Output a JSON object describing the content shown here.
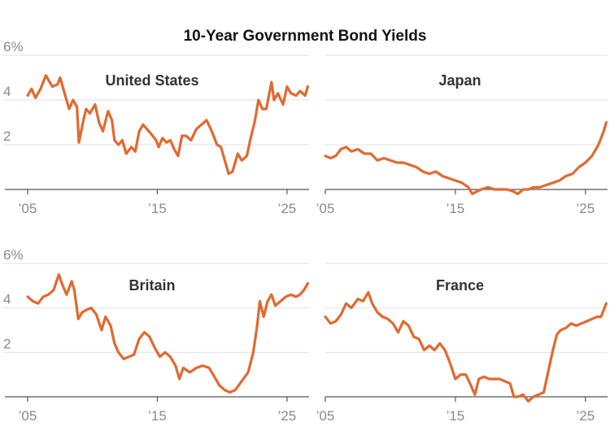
{
  "title": "10-Year Government Bond Yields",
  "colors": {
    "line": "#e06a31",
    "grid": "#e2e2e2",
    "axis": "#555555",
    "tick_text": "#8a8a8a"
  },
  "chart_data": [
    {
      "type": "line",
      "title": "United States",
      "xlim": [
        2005,
        2026.7
      ],
      "ylim": [
        0,
        6
      ],
      "yticks": [
        "6%",
        "4",
        "2"
      ],
      "xticks": [
        "’05",
        "’15",
        "’25"
      ],
      "x": [
        2005.0,
        2005.3,
        2005.6,
        2006.0,
        2006.4,
        2006.5,
        2006.9,
        2007.3,
        2007.5,
        2007.9,
        2008.2,
        2008.5,
        2008.8,
        2008.95,
        2009.3,
        2009.5,
        2009.8,
        2010.2,
        2010.5,
        2010.8,
        2011.2,
        2011.5,
        2011.7,
        2012.0,
        2012.3,
        2012.6,
        2013.0,
        2013.3,
        2013.6,
        2013.9,
        2014.2,
        2014.5,
        2014.9,
        2015.1,
        2015.4,
        2015.7,
        2016.0,
        2016.3,
        2016.6,
        2016.9,
        2017.2,
        2017.6,
        2018.0,
        2018.4,
        2018.8,
        2019.2,
        2019.6,
        2019.9,
        2020.2,
        2020.5,
        2020.8,
        2021.2,
        2021.5,
        2021.9,
        2022.2,
        2022.5,
        2022.8,
        2023.1,
        2023.4,
        2023.8,
        2024.0,
        2024.3,
        2024.7,
        2025.0,
        2025.3,
        2025.7,
        2026.0,
        2026.4,
        2026.6
      ],
      "values": [
        4.2,
        4.5,
        4.1,
        4.5,
        5.1,
        5.0,
        4.6,
        4.7,
        5.0,
        4.2,
        3.6,
        4.0,
        3.7,
        2.1,
        3.1,
        3.6,
        3.4,
        3.8,
        3.0,
        2.6,
        3.5,
        3.1,
        2.2,
        2.0,
        2.2,
        1.6,
        1.9,
        1.7,
        2.6,
        2.9,
        2.7,
        2.5,
        2.2,
        1.9,
        2.3,
        2.1,
        2.2,
        1.8,
        1.5,
        2.4,
        2.4,
        2.2,
        2.7,
        2.9,
        3.1,
        2.6,
        2.0,
        1.9,
        1.3,
        0.7,
        0.8,
        1.6,
        1.3,
        1.5,
        2.3,
        3.0,
        4.0,
        3.6,
        3.6,
        4.8,
        4.0,
        4.3,
        3.8,
        4.6,
        4.3,
        4.2,
        4.4,
        4.2,
        4.6
      ]
    },
    {
      "type": "line",
      "title": "Japan",
      "xlim": [
        2005,
        2026.7
      ],
      "ylim": [
        0,
        6
      ],
      "yticks": [],
      "xticks": [
        "’05",
        "’15",
        "’25"
      ],
      "x": [
        2005.0,
        2005.4,
        2005.8,
        2006.2,
        2006.6,
        2007.0,
        2007.5,
        2008.0,
        2008.5,
        2009.0,
        2009.5,
        2010.0,
        2010.5,
        2011.0,
        2011.5,
        2012.0,
        2012.5,
        2013.0,
        2013.5,
        2014.0,
        2014.5,
        2015.0,
        2015.5,
        2016.0,
        2016.3,
        2016.6,
        2017.0,
        2017.5,
        2018.0,
        2018.5,
        2019.0,
        2019.5,
        2019.8,
        2020.2,
        2020.6,
        2021.0,
        2021.5,
        2022.0,
        2022.5,
        2023.0,
        2023.5,
        2024.0,
        2024.5,
        2025.0,
        2025.5,
        2026.0,
        2026.4,
        2026.6
      ],
      "values": [
        1.5,
        1.4,
        1.5,
        1.8,
        1.9,
        1.7,
        1.8,
        1.6,
        1.6,
        1.3,
        1.4,
        1.3,
        1.2,
        1.2,
        1.1,
        1.0,
        0.8,
        0.7,
        0.8,
        0.6,
        0.5,
        0.4,
        0.3,
        0.1,
        -0.2,
        -0.1,
        0.0,
        0.1,
        0.0,
        0.0,
        0.0,
        -0.1,
        -0.2,
        0.0,
        0.0,
        0.1,
        0.1,
        0.2,
        0.3,
        0.4,
        0.6,
        0.7,
        1.0,
        1.2,
        1.5,
        2.0,
        2.6,
        3.0
      ]
    },
    {
      "type": "line",
      "title": "Britain",
      "xlim": [
        2005,
        2026.7
      ],
      "ylim": [
        0,
        6
      ],
      "yticks": [
        "6%",
        "4",
        "2"
      ],
      "xticks": [
        "’05",
        "’15",
        "’25"
      ],
      "x": [
        2005.0,
        2005.4,
        2005.8,
        2006.2,
        2006.6,
        2007.0,
        2007.4,
        2007.7,
        2008.0,
        2008.4,
        2008.6,
        2008.9,
        2009.2,
        2009.5,
        2009.9,
        2010.3,
        2010.7,
        2011.0,
        2011.4,
        2011.7,
        2012.0,
        2012.4,
        2012.8,
        2013.2,
        2013.6,
        2014.0,
        2014.4,
        2014.8,
        2015.2,
        2015.6,
        2016.0,
        2016.4,
        2016.7,
        2017.0,
        2017.5,
        2018.0,
        2018.5,
        2019.0,
        2019.4,
        2019.8,
        2020.2,
        2020.6,
        2021.0,
        2021.5,
        2022.0,
        2022.4,
        2022.7,
        2022.9,
        2023.2,
        2023.5,
        2023.8,
        2024.1,
        2024.5,
        2024.9,
        2025.3,
        2025.7,
        2026.0,
        2026.3,
        2026.6
      ],
      "values": [
        4.5,
        4.3,
        4.2,
        4.5,
        4.6,
        4.8,
        5.5,
        5.0,
        4.6,
        5.2,
        4.8,
        3.5,
        3.8,
        3.9,
        4.0,
        3.7,
        3.0,
        3.6,
        3.2,
        2.4,
        2.0,
        1.7,
        1.8,
        1.9,
        2.6,
        2.9,
        2.7,
        2.2,
        1.8,
        2.0,
        1.8,
        1.4,
        0.8,
        1.3,
        1.1,
        1.3,
        1.4,
        1.3,
        0.9,
        0.5,
        0.3,
        0.2,
        0.3,
        0.7,
        1.1,
        2.0,
        3.2,
        4.3,
        3.6,
        4.3,
        4.6,
        4.1,
        4.3,
        4.5,
        4.6,
        4.5,
        4.6,
        4.8,
        5.1
      ]
    },
    {
      "type": "line",
      "title": "France",
      "xlim": [
        2005,
        2026.7
      ],
      "ylim": [
        0,
        6
      ],
      "yticks": [],
      "xticks": [
        "’05",
        "’15",
        "’25"
      ],
      "x": [
        2005.0,
        2005.4,
        2005.8,
        2006.2,
        2006.6,
        2007.0,
        2007.5,
        2007.9,
        2008.3,
        2008.6,
        2009.0,
        2009.4,
        2009.8,
        2010.2,
        2010.6,
        2011.0,
        2011.4,
        2011.8,
        2012.2,
        2012.6,
        2013.0,
        2013.4,
        2013.8,
        2014.2,
        2014.6,
        2015.0,
        2015.4,
        2015.8,
        2016.2,
        2016.5,
        2016.8,
        2017.2,
        2017.6,
        2018.0,
        2018.4,
        2018.8,
        2019.2,
        2019.5,
        2019.8,
        2020.2,
        2020.6,
        2021.0,
        2021.4,
        2021.8,
        2022.2,
        2022.5,
        2022.8,
        2023.1,
        2023.5,
        2023.9,
        2024.3,
        2024.7,
        2025.1,
        2025.5,
        2025.9,
        2026.2,
        2026.6
      ],
      "values": [
        3.6,
        3.3,
        3.4,
        3.7,
        4.2,
        4.0,
        4.4,
        4.3,
        4.7,
        4.2,
        3.8,
        3.6,
        3.5,
        3.3,
        2.9,
        3.4,
        3.2,
        2.7,
        2.6,
        2.1,
        2.3,
        2.1,
        2.4,
        2.1,
        1.5,
        0.8,
        1.0,
        1.0,
        0.5,
        0.1,
        0.8,
        0.9,
        0.8,
        0.8,
        0.8,
        0.7,
        0.6,
        0.0,
        0.0,
        0.1,
        -0.2,
        0.0,
        0.1,
        0.2,
        1.3,
        2.1,
        2.8,
        3.0,
        3.1,
        3.3,
        3.2,
        3.3,
        3.4,
        3.5,
        3.6,
        3.6,
        4.2
      ]
    }
  ]
}
